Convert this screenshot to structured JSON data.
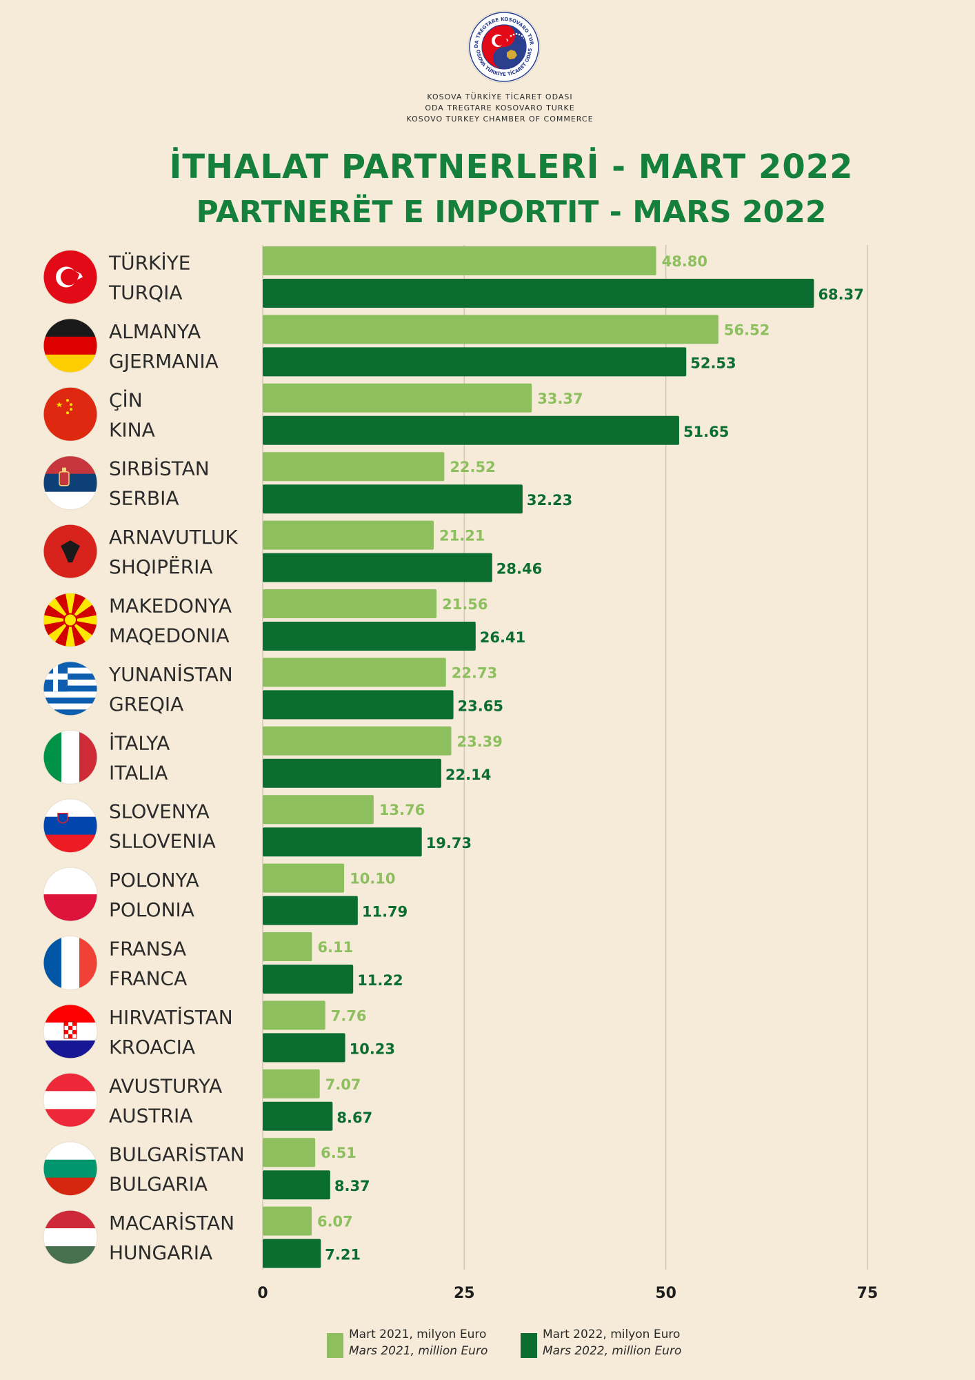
{
  "header": {
    "org_lines": [
      "KOSOVA TÜRKİYE TİCARET ODASI",
      "ODA TREGTARE KOSOVARO TURKE",
      "KOSOVO TURKEY CHAMBER OF COMMERCE"
    ],
    "logo_ring_text_top": "ODA TREGTARE KOSOVARO TURKE",
    "logo_ring_text_bottom": "KOSOVA TÜRKİYE TİCARET ODASI",
    "title_tr": "İTHALAT PARTNERLERİ - MART 2022",
    "title_sq": "PARTNERËT E IMPORTIT - MARS 2022"
  },
  "legend": [
    {
      "line1": "Mart 2021, milyon Euro",
      "line2": "Mars 2021, million Euro",
      "color": "#8dbf5f"
    },
    {
      "line1": "Mart 2022, milyon Euro",
      "line2": "Mars 2022, million Euro",
      "color": "#0b6e30"
    }
  ],
  "chart_data": {
    "type": "bar",
    "orientation": "horizontal",
    "categories": [
      [
        "TÜRKİYE",
        "TURQIA"
      ],
      [
        "ALMANYA",
        "GJERMANIA"
      ],
      [
        "ÇİN",
        "KINA"
      ],
      [
        "SIRBİSTAN",
        "SERBIA"
      ],
      [
        "ARNAVUTLUK",
        "SHQIPËRIA"
      ],
      [
        "MAKEDONYA",
        "MAQEDONIA"
      ],
      [
        "YUNANİSTAN",
        "GREQIA"
      ],
      [
        "İTALYA",
        "ITALIA"
      ],
      [
        "SLOVENYA",
        "SLLOVENIA"
      ],
      [
        "POLONYA",
        "POLONIA"
      ],
      [
        "FRANSA",
        "FRANCA"
      ],
      [
        "HIRVATİSTAN",
        "KROACIA"
      ],
      [
        "AVUSTURYA",
        "AUSTRIA"
      ],
      [
        "BULGARİSTAN",
        "BULGARIA"
      ],
      [
        "MACARİSTAN",
        "HUNGARIA"
      ]
    ],
    "flags": [
      "turkey",
      "germany",
      "china",
      "serbia",
      "albania",
      "north-macedonia",
      "greece",
      "italy",
      "slovenia",
      "poland",
      "france",
      "croatia",
      "austria",
      "bulgaria",
      "hungary"
    ],
    "series": [
      {
        "name": "Mart 2021, milyon Euro",
        "color": "#8dbf5f",
        "values": [
          48.8,
          56.52,
          33.37,
          22.52,
          21.21,
          21.56,
          22.73,
          23.39,
          13.76,
          10.1,
          6.11,
          7.76,
          7.07,
          6.51,
          6.07
        ],
        "labels": [
          "48.80",
          "56.52",
          "33.37",
          "22.52",
          "21.21",
          "21.56",
          "22.73",
          "23.39",
          "13.76",
          "10.10",
          "6.11",
          "7.76",
          "7.07",
          "6.51",
          "6.07"
        ]
      },
      {
        "name": "Mart 2022, milyon Euro",
        "color": "#0b6e30",
        "values": [
          68.37,
          52.53,
          51.65,
          32.23,
          28.46,
          26.41,
          23.65,
          22.14,
          19.73,
          11.79,
          11.22,
          10.23,
          8.67,
          8.37,
          7.21
        ],
        "labels": [
          "68.37",
          "52.53",
          "51.65",
          "32.23",
          "28.46",
          "26.41",
          "23.65",
          "22.14",
          "19.73",
          "11.79",
          "11.22",
          "10.23",
          "8.67",
          "8.37",
          "7.21"
        ]
      }
    ],
    "xlim": [
      0,
      75
    ],
    "xticks": [
      "0",
      "25",
      "50",
      "75"
    ],
    "grid": true
  }
}
